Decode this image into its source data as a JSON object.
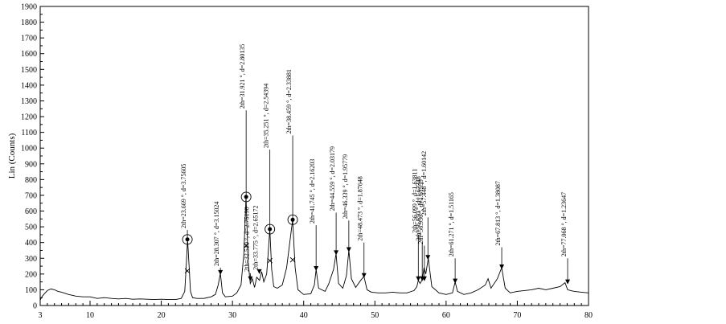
{
  "chart_data": {
    "type": "line",
    "title": "",
    "xlabel": "",
    "ylabel": "Lin (Counts)",
    "xlim": [
      3,
      80
    ],
    "ylim": [
      0,
      1900
    ],
    "x_ticks": [
      3,
      10,
      20,
      30,
      40,
      50,
      60,
      70,
      80
    ],
    "y_ticks": [
      0,
      100,
      200,
      300,
      400,
      500,
      600,
      700,
      800,
      900,
      1000,
      1100,
      1200,
      1300,
      1400,
      1500,
      1600,
      1700,
      1800,
      1900
    ],
    "grid": false,
    "legend": "none",
    "line_color": "#000000",
    "series": [
      {
        "x": [
          3,
          3.3,
          3.6,
          4,
          4.5,
          5,
          5.5,
          6,
          7,
          8,
          9,
          10,
          11,
          12,
          13,
          14,
          15,
          16,
          17,
          18,
          19,
          20,
          21,
          22,
          22.8,
          23.3,
          23.5,
          23.7,
          23.9,
          24.1,
          24.4,
          25,
          26,
          27,
          27.6,
          28,
          28.3,
          28.6,
          29,
          30,
          30.6,
          31.2,
          31.6,
          31.9,
          32.2,
          32.5,
          32.8,
          33.1,
          33.4,
          33.8,
          34.1,
          34.4,
          34.8,
          35.0,
          35.25,
          35.5,
          35.8,
          36.3,
          37,
          37.6,
          38.1,
          38.45,
          38.8,
          39.2,
          40,
          41,
          41.5,
          41.75,
          42.1,
          43,
          43.5,
          44.2,
          44.55,
          44.9,
          45.5,
          46.0,
          46.34,
          46.7,
          47.3,
          48.0,
          48.47,
          48.9,
          49.5,
          50.5,
          51.5,
          52.5,
          53.5,
          54.5,
          55.5,
          55.9,
          56.1,
          56.35,
          56.65,
          56.9,
          57.15,
          57.5,
          58,
          59,
          60,
          60.9,
          61.27,
          61.6,
          62.5,
          63.5,
          64.5,
          65.5,
          65.9,
          66.3,
          67.2,
          67.81,
          68.3,
          69,
          70,
          71,
          72,
          73,
          74,
          75,
          76,
          76.7,
          77.07,
          77.5,
          78,
          79,
          80
        ],
        "y": [
          35,
          60,
          75,
          95,
          105,
          100,
          90,
          85,
          70,
          60,
          55,
          55,
          45,
          50,
          45,
          42,
          45,
          40,
          42,
          40,
          38,
          40,
          38,
          38,
          45,
          90,
          250,
          420,
          260,
          90,
          50,
          45,
          45,
          55,
          70,
          130,
          205,
          80,
          55,
          60,
          80,
          130,
          330,
          690,
          280,
          140,
          170,
          115,
          180,
          160,
          215,
          150,
          200,
          320,
          485,
          230,
          120,
          110,
          130,
          240,
          420,
          545,
          240,
          100,
          70,
          75,
          130,
          230,
          110,
          90,
          135,
          230,
          330,
          140,
          110,
          190,
          350,
          170,
          115,
          160,
          185,
          100,
          85,
          80,
          80,
          85,
          80,
          80,
          95,
          120,
          160,
          140,
          165,
          240,
          200,
          300,
          120,
          80,
          70,
          80,
          150,
          90,
          70,
          80,
          100,
          130,
          170,
          110,
          170,
          240,
          110,
          80,
          90,
          95,
          100,
          110,
          100,
          110,
          120,
          145,
          100,
          95,
          90,
          85,
          80
        ]
      }
    ],
    "peak_annotations": [
      {
        "x": 23.669,
        "y": 420,
        "label": "2th=23.669 °, d=3.75605",
        "marker": "circle",
        "top": 480
      },
      {
        "x": 28.307,
        "y": 205,
        "label": "2th=28.307 °, d=3.15024",
        "marker": "triangle",
        "top": 240
      },
      {
        "x": 31.921,
        "y": 690,
        "label": "2th=31.921 °, d=2.80135",
        "marker": "circle",
        "top": 1240
      },
      {
        "x": 32.51,
        "y": 165,
        "label": "2th=32.510 °, d=2.75190",
        "marker": "triangle",
        "top": 205
      },
      {
        "x": 33.775,
        "y": 210,
        "label": "2th=33.775 °, d=2.65172",
        "marker": "triangle",
        "top": 215
      },
      {
        "x": 35.251,
        "y": 485,
        "label": "2th=35.251 °, d=2.54394",
        "marker": "circle",
        "top": 990
      },
      {
        "x": 38.459,
        "y": 545,
        "label": "2th=38.459 °, d=2.33881",
        "marker": "circle",
        "top": 1080
      },
      {
        "x": 41.745,
        "y": 230,
        "label": "2th=41.745 °, d=2.16203",
        "marker": "triangle",
        "top": 510
      },
      {
        "x": 44.559,
        "y": 330,
        "label": "2th=44.559 °, d=2.03179",
        "marker": "triangle",
        "top": 590
      },
      {
        "x": 46.339,
        "y": 350,
        "label": "2th=46.339 °, d=1.95779",
        "marker": "triangle",
        "top": 540
      },
      {
        "x": 48.473,
        "y": 185,
        "label": "2th=48.473 °, d=1.87648",
        "marker": "triangle",
        "top": 400
      },
      {
        "x": 56.099,
        "y": 165,
        "label": "2th=56.099 °, d=1.63811",
        "marker": "triangle",
        "top": 450
      },
      {
        "x": 56.65,
        "y": 165,
        "label": "2th=56.650 °, d=1.62348",
        "marker": "triangle",
        "top": 400
      },
      {
        "x": 56.95,
        "y": 165,
        "label": "2th=56.950 °, d=1.61559",
        "marker": "triangle",
        "top": 380
      },
      {
        "x": 57.448,
        "y": 300,
        "label": "2th=57.448 °, d=1.60142",
        "marker": "triangle",
        "top": 560
      },
      {
        "x": 61.271,
        "y": 150,
        "label": "2th=61.271 °, d=1.51165",
        "marker": "triangle",
        "top": 300
      },
      {
        "x": 67.813,
        "y": 240,
        "label": "2th=67.813 °, d=1.38087",
        "marker": "triangle",
        "top": 370
      },
      {
        "x": 77.068,
        "y": 145,
        "label": "2th=77.068 °, d=1.23647",
        "marker": "triangle",
        "top": 300
      }
    ],
    "cross_markers": [
      {
        "x": 23.669,
        "y": 220
      },
      {
        "x": 31.921,
        "y": 380
      },
      {
        "x": 35.251,
        "y": 285
      },
      {
        "x": 38.459,
        "y": 290
      }
    ]
  }
}
